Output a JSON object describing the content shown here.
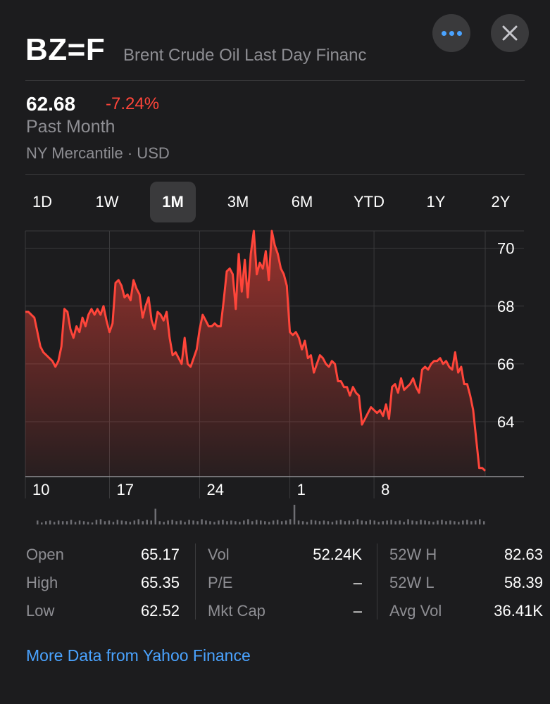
{
  "header": {
    "symbol": "BZ=F",
    "name": "Brent Crude Oil Last Day Financ",
    "more_icon": "ellipsis-icon",
    "close_icon": "close-icon"
  },
  "quote": {
    "price": "62.68",
    "change": "-7.24%",
    "period": "Past Month",
    "exchange": "NY Mercantile · USD"
  },
  "colors": {
    "accent": "#4aa3ff",
    "negative": "#ff453a",
    "background": "#1c1c1e",
    "muted": "#8e8e93"
  },
  "ranges": [
    "1D",
    "1W",
    "1M",
    "3M",
    "6M",
    "YTD",
    "1Y",
    "2Y"
  ],
  "active_range": "1M",
  "chart_data": {
    "type": "area",
    "y_ticks": [
      70,
      68,
      66,
      64
    ],
    "ylim": [
      62.1,
      70.6
    ],
    "x_tick_labels": [
      "10",
      "17",
      "24",
      "1",
      "8"
    ],
    "x_tick_index": [
      0,
      28,
      58,
      88,
      116
    ],
    "series": [
      {
        "values": [
          67.8,
          67.8,
          67.7,
          67.6,
          67.1,
          66.6,
          66.4,
          66.3,
          66.2,
          66.1,
          65.9,
          66.1,
          66.6,
          67.9,
          67.8,
          67.2,
          66.9,
          67.3,
          67.1,
          67.6,
          67.3,
          67.7,
          67.9,
          67.7,
          67.9,
          67.7,
          68.0,
          67.5,
          67.1,
          67.4,
          68.8,
          68.9,
          68.7,
          68.3,
          68.4,
          68.2,
          68.9,
          68.6,
          68.4,
          67.6,
          68.0,
          68.3,
          67.5,
          67.2,
          67.8,
          67.7,
          67.5,
          67.8,
          66.9,
          66.3,
          66.4,
          66.2,
          66.0,
          66.9,
          66.0,
          65.9,
          66.2,
          66.5,
          67.2,
          67.7,
          67.5,
          67.3,
          67.3,
          67.4,
          67.3,
          67.3,
          68.2,
          69.2,
          69.3,
          69.1,
          67.9,
          69.8,
          68.5,
          69.6,
          68.3,
          69.8,
          70.6,
          69.1,
          69.5,
          69.3,
          69.9,
          68.9,
          70.6,
          70.1,
          69.8,
          69.3,
          69.1,
          68.7,
          67.1,
          67.0,
          67.1,
          66.9,
          66.5,
          66.8,
          66.2,
          66.3,
          65.7,
          66.0,
          66.3,
          66.2,
          66.0,
          65.9,
          66.1,
          66.0,
          65.4,
          65.4,
          65.2,
          65.2,
          64.9,
          65.2,
          65.0,
          64.9,
          63.9,
          64.1,
          64.3,
          64.5,
          64.4,
          64.3,
          64.4,
          64.2,
          64.6,
          64.1,
          65.2,
          65.3,
          65.0,
          65.5,
          65.1,
          65.2,
          65.3,
          65.5,
          65.2,
          65.0,
          65.8,
          65.9,
          65.8,
          66.0,
          66.1,
          66.1,
          66.2,
          66.0,
          66.1,
          65.9,
          65.8,
          66.4,
          65.7,
          65.9,
          65.3,
          65.3,
          64.9,
          64.4,
          63.4,
          62.4,
          62.4,
          62.3
        ]
      }
    ],
    "volume": [
      6,
      3,
      5,
      6,
      4,
      6,
      5,
      5,
      7,
      4,
      6,
      5,
      4,
      3,
      7,
      8,
      5,
      6,
      4,
      7,
      6,
      5,
      4,
      6,
      8,
      5,
      7,
      6,
      24,
      5,
      4,
      6,
      7,
      5,
      6,
      4,
      7,
      6,
      5,
      8,
      6,
      5,
      4,
      6,
      7,
      5,
      6,
      5,
      4,
      6,
      8,
      5,
      7,
      6,
      5,
      4,
      6,
      7,
      5,
      6,
      8,
      30,
      6,
      5,
      4,
      7,
      6,
      5,
      6,
      5,
      4,
      6,
      7,
      5,
      6,
      5,
      8,
      6,
      5,
      7,
      6,
      4,
      5,
      6,
      7,
      5,
      6,
      4,
      8,
      6,
      5,
      7,
      6,
      5,
      4,
      6,
      7,
      5,
      6,
      5,
      4,
      6,
      7,
      5,
      6,
      8,
      5
    ]
  },
  "stats": {
    "col1": [
      {
        "label": "Open",
        "value": "65.17"
      },
      {
        "label": "High",
        "value": "65.35"
      },
      {
        "label": "Low",
        "value": "62.52"
      }
    ],
    "col2": [
      {
        "label": "Vol",
        "value": "52.24K"
      },
      {
        "label": "P/E",
        "value": "–"
      },
      {
        "label": "Mkt Cap",
        "value": "–"
      }
    ],
    "col3": [
      {
        "label": "52W H",
        "value": "82.63"
      },
      {
        "label": "52W L",
        "value": "58.39"
      },
      {
        "label": "Avg Vol",
        "value": "36.41K"
      }
    ]
  },
  "link_text": "More Data from Yahoo Finance"
}
